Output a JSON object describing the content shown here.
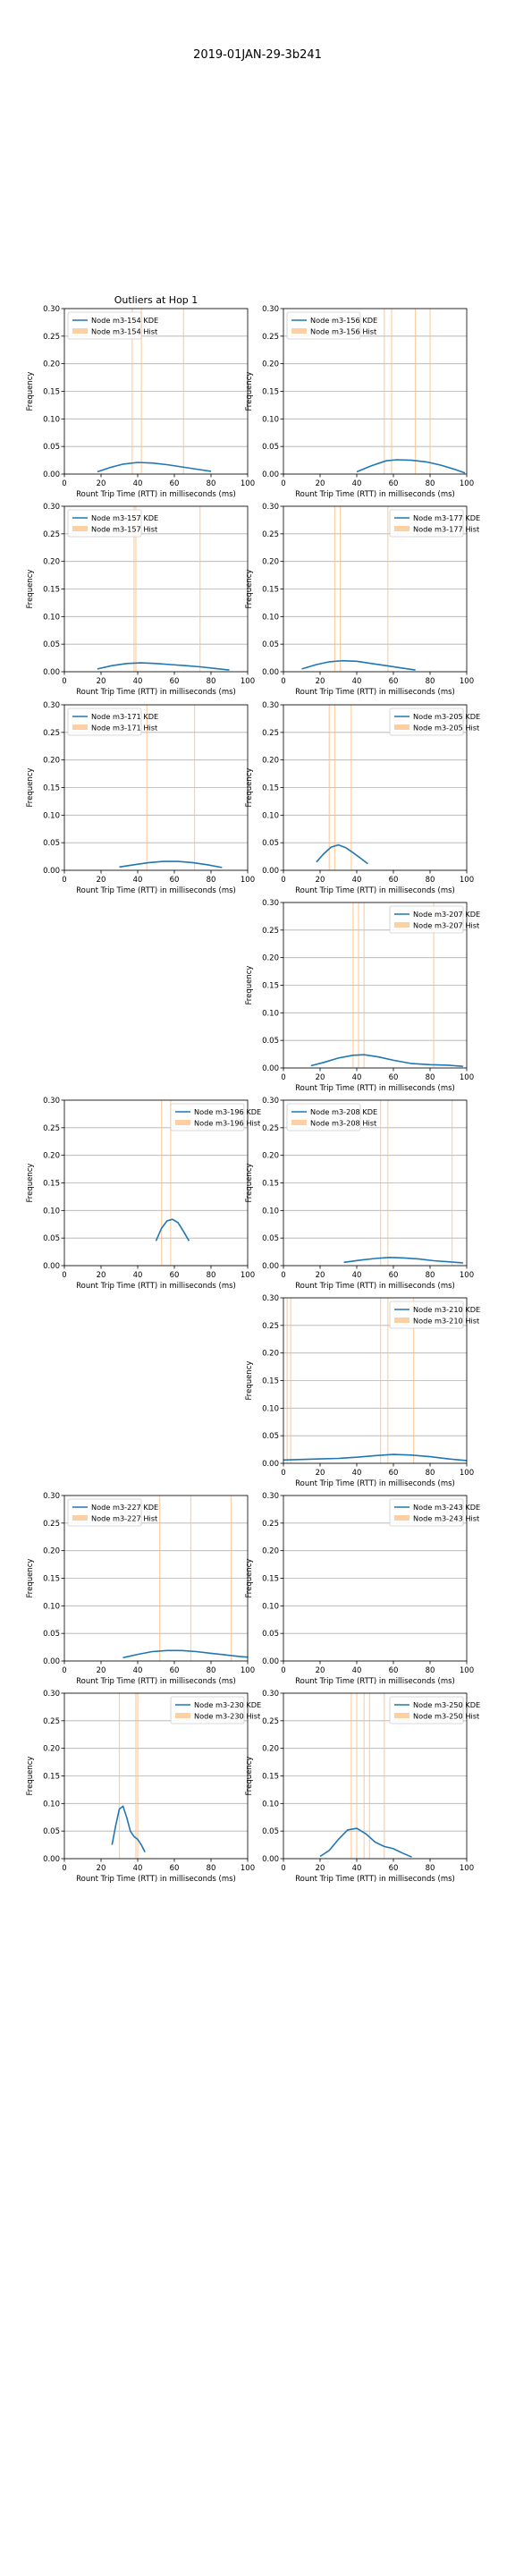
{
  "figure": {
    "title": "2019-01JAN-29-3b241"
  },
  "colors": {
    "kde": "#1f77b4",
    "hist": "#ffbf86",
    "grid": "#b0b0b0",
    "axis": "#000000"
  },
  "chart_data": [
    {
      "type": "line",
      "title": "Outliers at Hop 1",
      "xlabel": "Rount Trip Time (RTT) in milliseconds (ms)",
      "ylabel": "Frequency",
      "xlim": [
        0,
        100
      ],
      "ylim": [
        0,
        0.3
      ],
      "xticks": [
        0,
        20,
        40,
        60,
        80,
        100
      ],
      "yticks": [
        0.0,
        0.05,
        0.1,
        0.15,
        0.2,
        0.25,
        0.3
      ],
      "grid": true,
      "legend_position": "upper left",
      "series": [
        {
          "name": "Node m3-154 KDE",
          "kind": "kde",
          "x": [
            18,
            25,
            32,
            40,
            48,
            56,
            64,
            72,
            80
          ],
          "y": [
            0.004,
            0.012,
            0.018,
            0.021,
            0.02,
            0.017,
            0.013,
            0.009,
            0.005
          ]
        },
        {
          "name": "Node m3-154 Hist",
          "kind": "hist",
          "x": [
            37,
            42,
            65
          ]
        }
      ]
    },
    {
      "type": "line",
      "title": "",
      "xlabel": "Rount Trip Time (RTT) in milliseconds (ms)",
      "ylabel": "Frequency",
      "xlim": [
        0,
        100
      ],
      "ylim": [
        0,
        0.3
      ],
      "xticks": [
        0,
        20,
        40,
        60,
        80,
        100
      ],
      "yticks": [
        0.0,
        0.05,
        0.1,
        0.15,
        0.2,
        0.25,
        0.3
      ],
      "grid": true,
      "legend_position": "upper left",
      "series": [
        {
          "name": "Node m3-156 KDE",
          "kind": "kde",
          "x": [
            40,
            48,
            56,
            62,
            70,
            78,
            86,
            94,
            99
          ],
          "y": [
            0.004,
            0.015,
            0.024,
            0.026,
            0.025,
            0.022,
            0.016,
            0.008,
            0.002
          ]
        },
        {
          "name": "Node m3-156 Hist",
          "kind": "hist",
          "x": [
            55,
            59,
            72,
            80
          ]
        }
      ]
    },
    {
      "type": "line",
      "title": "",
      "xlabel": "Rount Trip Time (RTT) in milliseconds (ms)",
      "ylabel": "Frequency",
      "xlim": [
        0,
        100
      ],
      "ylim": [
        0,
        0.3
      ],
      "xticks": [
        0,
        20,
        40,
        60,
        80,
        100
      ],
      "yticks": [
        0.0,
        0.05,
        0.1,
        0.15,
        0.2,
        0.25,
        0.3
      ],
      "grid": true,
      "legend_position": "upper left",
      "series": [
        {
          "name": "Node m3-157 KDE",
          "kind": "kde",
          "x": [
            18,
            26,
            34,
            42,
            50,
            58,
            66,
            74,
            82,
            90
          ],
          "y": [
            0.005,
            0.011,
            0.015,
            0.016,
            0.015,
            0.013,
            0.011,
            0.009,
            0.006,
            0.003
          ]
        },
        {
          "name": "Node m3-157 Hist",
          "kind": "hist",
          "x": [
            38,
            39,
            74
          ]
        }
      ]
    },
    {
      "type": "line",
      "title": "",
      "xlabel": "Rount Trip Time (RTT) in milliseconds (ms)",
      "ylabel": "Frequency",
      "xlim": [
        0,
        100
      ],
      "ylim": [
        0,
        0.3
      ],
      "xticks": [
        0,
        20,
        40,
        60,
        80,
        100
      ],
      "yticks": [
        0.0,
        0.05,
        0.1,
        0.15,
        0.2,
        0.25,
        0.3
      ],
      "grid": true,
      "legend_position": "upper right",
      "series": [
        {
          "name": "Node m3-177 KDE",
          "kind": "kde",
          "x": [
            10,
            18,
            25,
            32,
            40,
            48,
            56,
            64,
            72
          ],
          "y": [
            0.005,
            0.013,
            0.018,
            0.02,
            0.019,
            0.015,
            0.011,
            0.007,
            0.003
          ]
        },
        {
          "name": "Node m3-177 Hist",
          "kind": "hist",
          "x": [
            28,
            31,
            57
          ]
        }
      ]
    },
    {
      "type": "line",
      "title": "",
      "xlabel": "Rount Trip Time (RTT) in milliseconds (ms)",
      "ylabel": "Frequency",
      "xlim": [
        0,
        100
      ],
      "ylim": [
        0,
        0.3
      ],
      "xticks": [
        0,
        20,
        40,
        60,
        80,
        100
      ],
      "yticks": [
        0.0,
        0.05,
        0.1,
        0.15,
        0.2,
        0.25,
        0.3
      ],
      "grid": true,
      "legend_position": "upper left",
      "series": [
        {
          "name": "Node m3-171 KDE",
          "kind": "kde",
          "x": [
            30,
            38,
            46,
            54,
            62,
            70,
            78,
            86
          ],
          "y": [
            0.006,
            0.01,
            0.014,
            0.016,
            0.016,
            0.014,
            0.01,
            0.005
          ]
        },
        {
          "name": "Node m3-171 Hist",
          "kind": "hist",
          "x": [
            45,
            71
          ]
        }
      ]
    },
    {
      "type": "line",
      "title": "",
      "xlabel": "Rount Trip Time (RTT) in milliseconds (ms)",
      "ylabel": "Frequency",
      "xlim": [
        0,
        100
      ],
      "ylim": [
        0,
        0.3
      ],
      "xticks": [
        0,
        20,
        40,
        60,
        80,
        100
      ],
      "yticks": [
        0.0,
        0.05,
        0.1,
        0.15,
        0.2,
        0.25,
        0.3
      ],
      "grid": true,
      "legend_position": "upper right",
      "series": [
        {
          "name": "Node m3-205 KDE",
          "kind": "kde",
          "x": [
            18,
            22,
            26,
            30,
            34,
            38,
            42,
            46
          ],
          "y": [
            0.015,
            0.03,
            0.042,
            0.046,
            0.041,
            0.032,
            0.022,
            0.012
          ]
        },
        {
          "name": "Node m3-205 Hist",
          "kind": "hist",
          "x": [
            25,
            28,
            37
          ]
        }
      ]
    },
    null,
    {
      "type": "line",
      "title": "",
      "xlabel": "Rount Trip Time (RTT) in milliseconds (ms)",
      "ylabel": "Frequency",
      "xlim": [
        0,
        100
      ],
      "ylim": [
        0,
        0.3
      ],
      "xticks": [
        0,
        20,
        40,
        60,
        80,
        100
      ],
      "yticks": [
        0.0,
        0.05,
        0.1,
        0.15,
        0.2,
        0.25,
        0.3
      ],
      "grid": true,
      "legend_position": "upper right",
      "series": [
        {
          "name": "Node m3-207 KDE",
          "kind": "kde",
          "x": [
            15,
            22,
            30,
            38,
            44,
            52,
            60,
            70,
            80,
            90,
            98
          ],
          "y": [
            0.004,
            0.01,
            0.018,
            0.023,
            0.024,
            0.02,
            0.014,
            0.008,
            0.006,
            0.005,
            0.003
          ]
        },
        {
          "name": "Node m3-207 Hist",
          "kind": "hist",
          "x": [
            38,
            41,
            44,
            82
          ]
        }
      ]
    },
    {
      "type": "line",
      "title": "",
      "xlabel": "Rount Trip Time (RTT) in milliseconds (ms)",
      "ylabel": "Frequency",
      "xlim": [
        0,
        100
      ],
      "ylim": [
        0,
        0.3
      ],
      "xticks": [
        0,
        20,
        40,
        60,
        80,
        100
      ],
      "yticks": [
        0.0,
        0.05,
        0.1,
        0.15,
        0.2,
        0.25,
        0.3
      ],
      "grid": true,
      "legend_position": "upper right",
      "series": [
        {
          "name": "Node m3-196 KDE",
          "kind": "kde",
          "x": [
            50,
            53,
            56,
            59,
            62,
            65,
            68
          ],
          "y": [
            0.045,
            0.068,
            0.081,
            0.084,
            0.078,
            0.062,
            0.045
          ]
        },
        {
          "name": "Node m3-196 Hist",
          "kind": "hist",
          "x": [
            53,
            58
          ]
        }
      ]
    },
    {
      "type": "line",
      "title": "",
      "xlabel": "Rount Trip Time (RTT) in milliseconds (ms)",
      "ylabel": "Frequency",
      "xlim": [
        0,
        100
      ],
      "ylim": [
        0,
        0.3
      ],
      "xticks": [
        0,
        20,
        40,
        60,
        80,
        100
      ],
      "yticks": [
        0.0,
        0.05,
        0.1,
        0.15,
        0.2,
        0.25,
        0.3
      ],
      "grid": true,
      "legend_position": "upper left",
      "series": [
        {
          "name": "Node m3-208 KDE",
          "kind": "kde",
          "x": [
            33,
            42,
            50,
            58,
            66,
            74,
            82,
            90,
            98
          ],
          "y": [
            0.006,
            0.01,
            0.013,
            0.015,
            0.014,
            0.012,
            0.009,
            0.007,
            0.005
          ]
        },
        {
          "name": "Node m3-208 Hist",
          "kind": "hist",
          "x": [
            53,
            57,
            92
          ]
        }
      ]
    },
    null,
    {
      "type": "line",
      "title": "",
      "xlabel": "Rount Trip Time (RTT) in milliseconds (ms)",
      "ylabel": "Frequency",
      "xlim": [
        0,
        100
      ],
      "ylim": [
        0,
        0.3
      ],
      "xticks": [
        0,
        20,
        40,
        60,
        80,
        100
      ],
      "yticks": [
        0.0,
        0.05,
        0.1,
        0.15,
        0.2,
        0.25,
        0.3
      ],
      "grid": true,
      "legend_position": "upper right",
      "series": [
        {
          "name": "Node m3-210 KDE",
          "kind": "kde",
          "x": [
            0,
            10,
            20,
            30,
            40,
            50,
            60,
            70,
            80,
            90,
            100
          ],
          "y": [
            0.006,
            0.007,
            0.008,
            0.009,
            0.011,
            0.014,
            0.016,
            0.015,
            0.012,
            0.008,
            0.005
          ]
        },
        {
          "name": "Node m3-210 Hist",
          "kind": "hist",
          "x": [
            2,
            4,
            53,
            57,
            71
          ]
        }
      ]
    },
    {
      "type": "line",
      "title": "",
      "xlabel": "Rount Trip Time (RTT) in milliseconds (ms)",
      "ylabel": "Frequency",
      "xlim": [
        0,
        100
      ],
      "ylim": [
        0,
        0.3
      ],
      "xticks": [
        0,
        20,
        40,
        60,
        80,
        100
      ],
      "yticks": [
        0.0,
        0.05,
        0.1,
        0.15,
        0.2,
        0.25,
        0.3
      ],
      "grid": true,
      "legend_position": "upper left",
      "series": [
        {
          "name": "Node m3-227 KDE",
          "kind": "kde",
          "x": [
            32,
            40,
            48,
            56,
            64,
            72,
            80,
            88,
            96,
            100
          ],
          "y": [
            0.006,
            0.012,
            0.017,
            0.019,
            0.019,
            0.017,
            0.014,
            0.011,
            0.008,
            0.007
          ]
        },
        {
          "name": "Node m3-227 Hist",
          "kind": "hist",
          "x": [
            52,
            69,
            91
          ]
        }
      ]
    },
    {
      "type": "line",
      "title": "",
      "xlabel": "Rount Trip Time (RTT) in milliseconds (ms)",
      "ylabel": "Frequency",
      "xlim": [
        0,
        100
      ],
      "ylim": [
        0,
        0.3
      ],
      "xticks": [
        0,
        20,
        40,
        60,
        80,
        100
      ],
      "yticks": [
        0.0,
        0.05,
        0.1,
        0.15,
        0.2,
        0.25,
        0.3
      ],
      "grid": true,
      "legend_position": "upper right",
      "series": [
        {
          "name": "Node m3-243 KDE",
          "kind": "kde",
          "x": [],
          "y": []
        },
        {
          "name": "Node m3-243 Hist",
          "kind": "hist",
          "x": []
        }
      ]
    },
    {
      "type": "line",
      "title": "",
      "xlabel": "Rount Trip Time (RTT) in milliseconds (ms)",
      "ylabel": "Frequency",
      "xlim": [
        0,
        100
      ],
      "ylim": [
        0,
        0.3
      ],
      "xticks": [
        0,
        20,
        40,
        60,
        80,
        100
      ],
      "yticks": [
        0.0,
        0.05,
        0.1,
        0.15,
        0.2,
        0.25,
        0.3
      ],
      "grid": true,
      "legend_position": "upper right",
      "series": [
        {
          "name": "Node m3-230 KDE",
          "kind": "kde",
          "x": [
            26,
            28,
            30,
            32,
            34,
            36,
            38,
            40,
            42,
            44
          ],
          "y": [
            0.025,
            0.06,
            0.09,
            0.095,
            0.075,
            0.05,
            0.04,
            0.035,
            0.025,
            0.012
          ]
        },
        {
          "name": "Node m3-230 Hist",
          "kind": "hist",
          "x": [
            30,
            39,
            40
          ]
        }
      ]
    },
    {
      "type": "line",
      "title": "",
      "xlabel": "Rount Trip Time (RTT) in milliseconds (ms)",
      "ylabel": "Frequency",
      "xlim": [
        0,
        100
      ],
      "ylim": [
        0,
        0.3
      ],
      "xticks": [
        0,
        20,
        40,
        60,
        80,
        100
      ],
      "yticks": [
        0.0,
        0.05,
        0.1,
        0.15,
        0.2,
        0.25,
        0.3
      ],
      "grid": true,
      "legend_position": "upper right",
      "series": [
        {
          "name": "Node m3-250 KDE",
          "kind": "kde",
          "x": [
            20,
            25,
            30,
            35,
            40,
            45,
            50,
            55,
            60,
            65,
            70
          ],
          "y": [
            0.004,
            0.015,
            0.035,
            0.052,
            0.055,
            0.045,
            0.03,
            0.022,
            0.018,
            0.01,
            0.003
          ]
        },
        {
          "name": "Node m3-250 Hist",
          "kind": "hist",
          "x": [
            37,
            40,
            44,
            47,
            55
          ]
        }
      ]
    }
  ]
}
